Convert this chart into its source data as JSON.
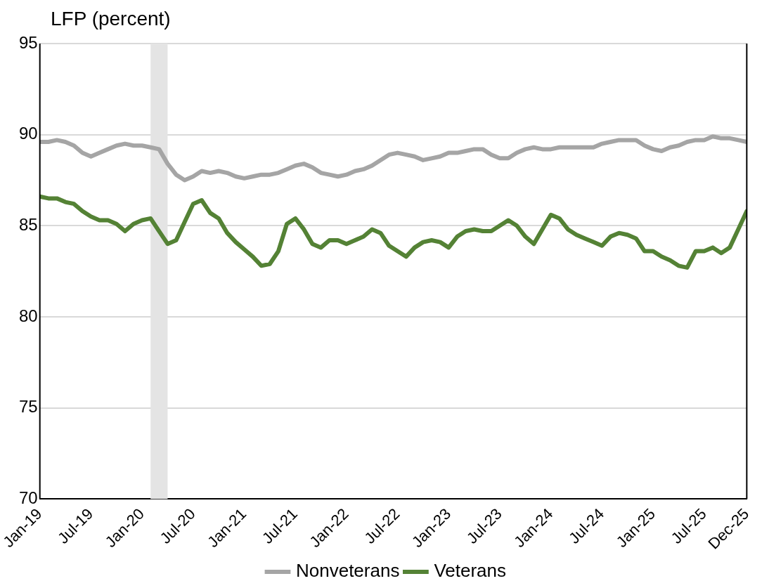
{
  "chart_data": {
    "type": "line",
    "ylabel": "LFP (percent)",
    "x": [
      "2019-01",
      "2019-02",
      "2019-03",
      "2019-04",
      "2019-05",
      "2019-06",
      "2019-07",
      "2019-08",
      "2019-09",
      "2019-10",
      "2019-11",
      "2019-12",
      "2020-01",
      "2020-02",
      "2020-03",
      "2020-04",
      "2020-05",
      "2020-06",
      "2020-07",
      "2020-08",
      "2020-09",
      "2020-10",
      "2020-11",
      "2020-12",
      "2021-01",
      "2021-02",
      "2021-03",
      "2021-04",
      "2021-05",
      "2021-06",
      "2021-07",
      "2021-08",
      "2021-09",
      "2021-10",
      "2021-11",
      "2021-12",
      "2022-01",
      "2022-02",
      "2022-03",
      "2022-04",
      "2022-05",
      "2022-06",
      "2022-07",
      "2022-08",
      "2022-09",
      "2022-10",
      "2022-11",
      "2022-12",
      "2023-01",
      "2023-02",
      "2023-03",
      "2023-04",
      "2023-05",
      "2023-06",
      "2023-07",
      "2023-08",
      "2023-09",
      "2023-10",
      "2023-11",
      "2023-12",
      "2024-01",
      "2024-02",
      "2024-03",
      "2024-04",
      "2024-05",
      "2024-06",
      "2024-07",
      "2024-08",
      "2024-09",
      "2024-10",
      "2024-11",
      "2024-12",
      "2025-01",
      "2025-02",
      "2025-03",
      "2025-04",
      "2025-05",
      "2025-06",
      "2025-07",
      "2025-08",
      "2025-09",
      "2025-10",
      "2025-11",
      "2025-12"
    ],
    "series": [
      {
        "name": "Nonveterans",
        "color": "#a5a5a5",
        "values": [
          89.6,
          89.6,
          89.7,
          89.6,
          89.4,
          89.0,
          88.8,
          89.0,
          89.2,
          89.4,
          89.5,
          89.4,
          89.4,
          89.3,
          89.2,
          88.4,
          87.8,
          87.5,
          87.7,
          88.0,
          87.9,
          88.0,
          87.9,
          87.7,
          87.6,
          87.7,
          87.8,
          87.8,
          87.9,
          88.1,
          88.3,
          88.4,
          88.2,
          87.9,
          87.8,
          87.7,
          87.8,
          88.0,
          88.1,
          88.3,
          88.6,
          88.9,
          89.0,
          88.9,
          88.8,
          88.6,
          88.7,
          88.8,
          89.0,
          89.0,
          89.1,
          89.2,
          89.2,
          88.9,
          88.7,
          88.7,
          89.0,
          89.2,
          89.3,
          89.2,
          89.2,
          89.3,
          89.3,
          89.3,
          89.3,
          89.3,
          89.5,
          89.6,
          89.7,
          89.7,
          89.7,
          89.4,
          89.2,
          89.1,
          89.3,
          89.4,
          89.6,
          89.7,
          89.7,
          89.9,
          89.8,
          89.8,
          89.7,
          89.6
        ]
      },
      {
        "name": "Veterans",
        "color": "#548235",
        "values": [
          86.6,
          86.5,
          86.5,
          86.3,
          86.2,
          85.8,
          85.5,
          85.3,
          85.3,
          85.1,
          84.7,
          85.1,
          85.3,
          85.4,
          84.7,
          84.0,
          84.2,
          85.2,
          86.2,
          86.4,
          85.7,
          85.4,
          84.6,
          84.1,
          83.7,
          83.3,
          82.8,
          82.9,
          83.6,
          85.1,
          85.4,
          84.8,
          84.0,
          83.8,
          84.2,
          84.2,
          84.0,
          84.2,
          84.4,
          84.8,
          84.6,
          83.9,
          83.6,
          83.3,
          83.8,
          84.1,
          84.2,
          84.1,
          83.8,
          84.4,
          84.7,
          84.8,
          84.7,
          84.7,
          85.0,
          85.3,
          85.0,
          84.4,
          84.0,
          84.8,
          85.6,
          85.4,
          84.8,
          84.5,
          84.3,
          84.1,
          83.9,
          84.4,
          84.6,
          84.5,
          84.3,
          83.6,
          83.6,
          83.3,
          83.1,
          82.8,
          82.7,
          83.6,
          83.6,
          83.8,
          83.5,
          83.8,
          84.8,
          85.8
        ]
      }
    ],
    "xlim": [
      "2019-01",
      "2025-12"
    ],
    "xticks": [
      {
        "value": "2019-01",
        "label": "Jan-19"
      },
      {
        "value": "2019-07",
        "label": "Jul-19"
      },
      {
        "value": "2020-01",
        "label": "Jan-20"
      },
      {
        "value": "2020-07",
        "label": "Jul-20"
      },
      {
        "value": "2021-01",
        "label": "Jan-21"
      },
      {
        "value": "2021-07",
        "label": "Jul-21"
      },
      {
        "value": "2022-01",
        "label": "Jan-22"
      },
      {
        "value": "2022-07",
        "label": "Jul-22"
      },
      {
        "value": "2023-01",
        "label": "Jan-23"
      },
      {
        "value": "2023-07",
        "label": "Jul-23"
      },
      {
        "value": "2024-01",
        "label": "Jan-24"
      },
      {
        "value": "2024-07",
        "label": "Jul-24"
      },
      {
        "value": "2025-01",
        "label": "Jan-25"
      },
      {
        "value": "2025-07",
        "label": "Jul-25"
      },
      {
        "value": "2025-12",
        "label": "Dec-25"
      }
    ],
    "ylim": [
      70,
      95
    ],
    "yticks": [
      70,
      75,
      80,
      85,
      90,
      95
    ],
    "bands": [
      {
        "axis": "x",
        "from": "2020-02",
        "to": "2020-04",
        "color": "#e4e4e4"
      }
    ],
    "grid": "y",
    "legend": "bottom",
    "marker": "none",
    "line_style": "solid"
  }
}
